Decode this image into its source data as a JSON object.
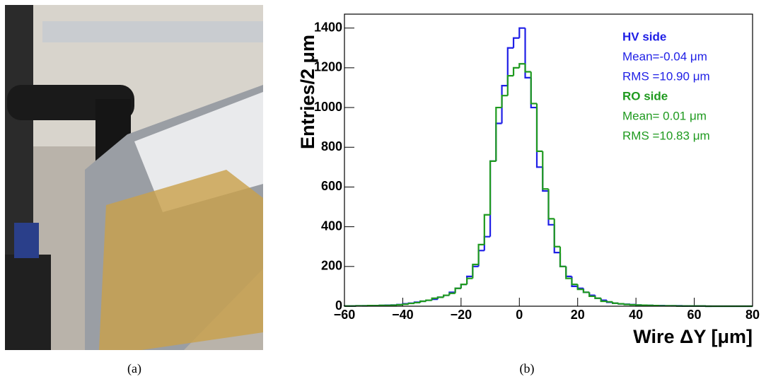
{
  "captions": [
    "(a)",
    "(b)"
  ],
  "chart_data": {
    "type": "histogram",
    "xlabel": "Wire ΔY [μm]",
    "ylabel": "Entries/2 μm",
    "bins": [
      -60,
      -58,
      -56,
      -54,
      -52,
      -50,
      -48,
      -46,
      -44,
      -42,
      -40,
      -38,
      -36,
      -34,
      -32,
      -30,
      -28,
      -26,
      -24,
      -22,
      -20,
      -18,
      -16,
      -14,
      -12,
      -10,
      -8,
      -6,
      -4,
      -2,
      0,
      2,
      4,
      6,
      8,
      10,
      12,
      14,
      16,
      18,
      20,
      22,
      24,
      26,
      28,
      30,
      32,
      34,
      36,
      38,
      40,
      42,
      44,
      46,
      48,
      50,
      52,
      54,
      56,
      58,
      60,
      62,
      64,
      66,
      68,
      70,
      72,
      74,
      76,
      78,
      80
    ],
    "series": [
      {
        "name": "HV side",
        "color": "#1f1fe6",
        "stats": [
          "Mean=-0.04 μm",
          "RMS =10.90 μm"
        ],
        "values": [
          1,
          1,
          2,
          2,
          3,
          3,
          4,
          5,
          6,
          8,
          12,
          15,
          20,
          25,
          30,
          35,
          45,
          55,
          70,
          90,
          110,
          150,
          200,
          280,
          350,
          730,
          920,
          1110,
          1300,
          1350,
          1400,
          1150,
          1000,
          700,
          580,
          410,
          270,
          200,
          150,
          100,
          90,
          70,
          55,
          40,
          30,
          20,
          15,
          12,
          10,
          8,
          6,
          5,
          4,
          3,
          3,
          2,
          2,
          2,
          1,
          1,
          1,
          1,
          0,
          0,
          0,
          0,
          0,
          0,
          0,
          0
        ]
      },
      {
        "name": "RO side",
        "color": "#1f9a1f",
        "stats": [
          "Mean= 0.01 μm",
          "RMS =10.83 μm"
        ],
        "values": [
          1,
          1,
          2,
          2,
          3,
          3,
          4,
          4,
          5,
          7,
          10,
          14,
          18,
          25,
          30,
          40,
          45,
          55,
          65,
          90,
          110,
          140,
          210,
          310,
          460,
          730,
          1000,
          1060,
          1160,
          1200,
          1220,
          1180,
          1020,
          780,
          590,
          440,
          300,
          200,
          140,
          110,
          85,
          70,
          50,
          40,
          25,
          22,
          15,
          12,
          9,
          7,
          6,
          5,
          4,
          3,
          2,
          2,
          2,
          1,
          1,
          1,
          1,
          1,
          0,
          0,
          0,
          0,
          0,
          0,
          0,
          0
        ]
      }
    ],
    "xlim": [
      -60,
      80
    ],
    "xticks": [
      {
        "value": -60,
        "label": "−60"
      },
      {
        "value": -40,
        "label": "−40"
      },
      {
        "value": -20,
        "label": "−20"
      },
      0,
      20,
      40,
      60,
      80
    ],
    "ylim": [
      0,
      1470
    ],
    "yticks": [
      0,
      200,
      400,
      600,
      800,
      1000,
      1200,
      1400
    ]
  }
}
